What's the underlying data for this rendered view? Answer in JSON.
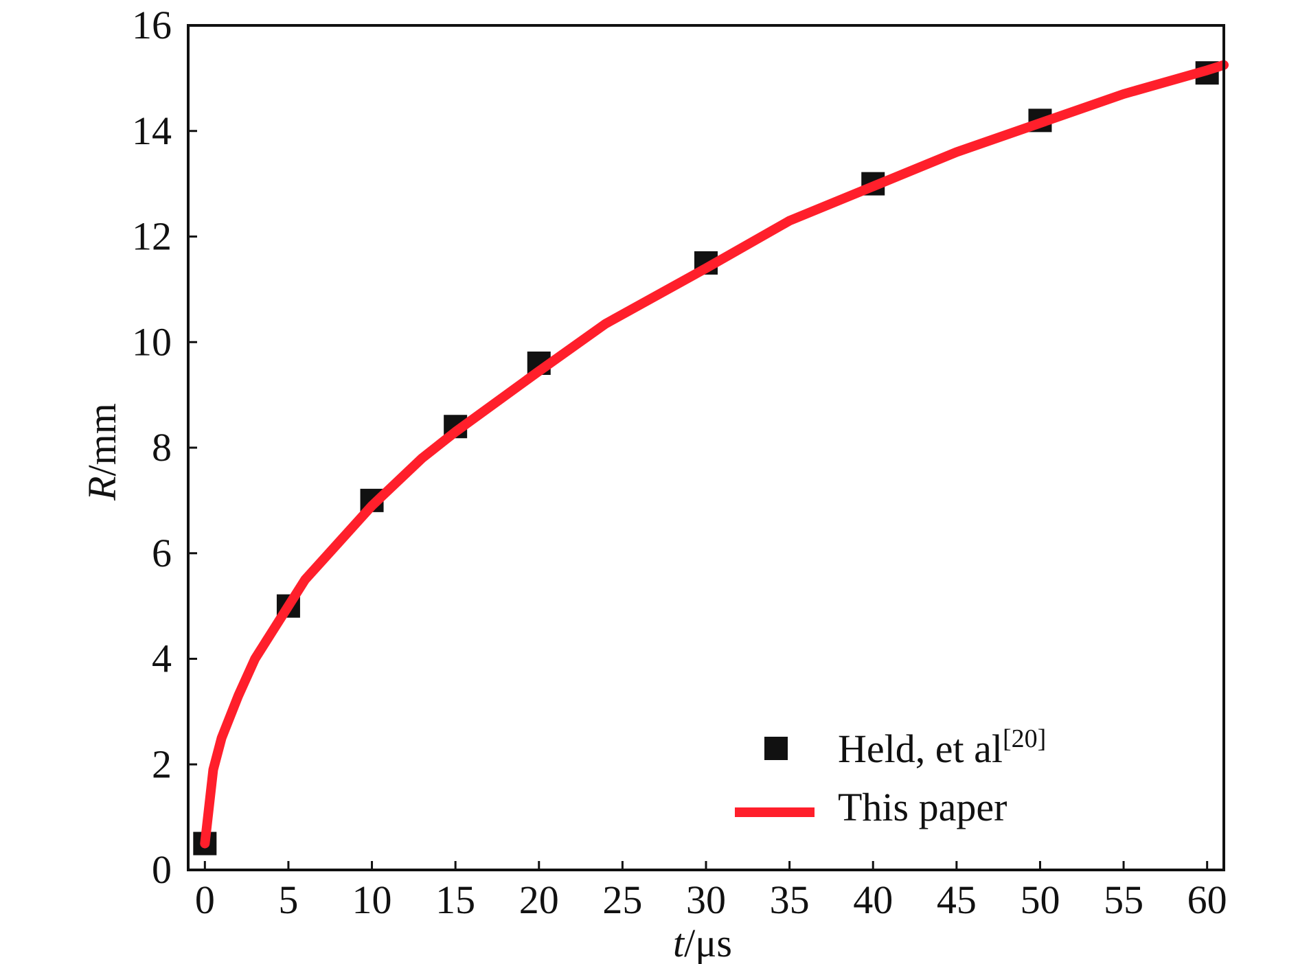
{
  "chart_data": {
    "type": "line",
    "title": "",
    "xlabel": {
      "italic": "t",
      "unit": "/μs"
    },
    "ylabel": {
      "italic": "R",
      "unit": "/mm"
    },
    "xlim": [
      -1,
      61
    ],
    "ylim": [
      0,
      16
    ],
    "x_ticks": [
      0,
      5,
      10,
      15,
      20,
      25,
      30,
      35,
      40,
      45,
      50,
      55,
      60
    ],
    "y_ticks": [
      0,
      2,
      4,
      6,
      8,
      10,
      12,
      14,
      16
    ],
    "grid": false,
    "legend_position": "bottom-right",
    "series": [
      {
        "name": "Held, et al",
        "name_superscript": "[20]",
        "kind": "scatter",
        "marker": "square",
        "color": "#111111",
        "x": [
          0,
          5,
          10,
          15,
          20,
          30,
          40,
          50,
          60
        ],
        "y": [
          0.5,
          5.0,
          7.0,
          8.4,
          9.6,
          11.5,
          13.0,
          14.2,
          15.1
        ]
      },
      {
        "name": "This paper",
        "kind": "line",
        "color": "#ff1f2b",
        "x": [
          0,
          0.5,
          1,
          2,
          3,
          4,
          5,
          6,
          8,
          10,
          13,
          15,
          20,
          24,
          30,
          35,
          40,
          45,
          50,
          55,
          60,
          61
        ],
        "y": [
          0.5,
          1.9,
          2.5,
          3.3,
          4.0,
          4.5,
          5.0,
          5.5,
          6.2,
          6.9,
          7.8,
          8.3,
          9.45,
          10.35,
          11.4,
          12.3,
          12.95,
          13.6,
          14.15,
          14.7,
          15.15,
          15.25
        ]
      }
    ]
  }
}
